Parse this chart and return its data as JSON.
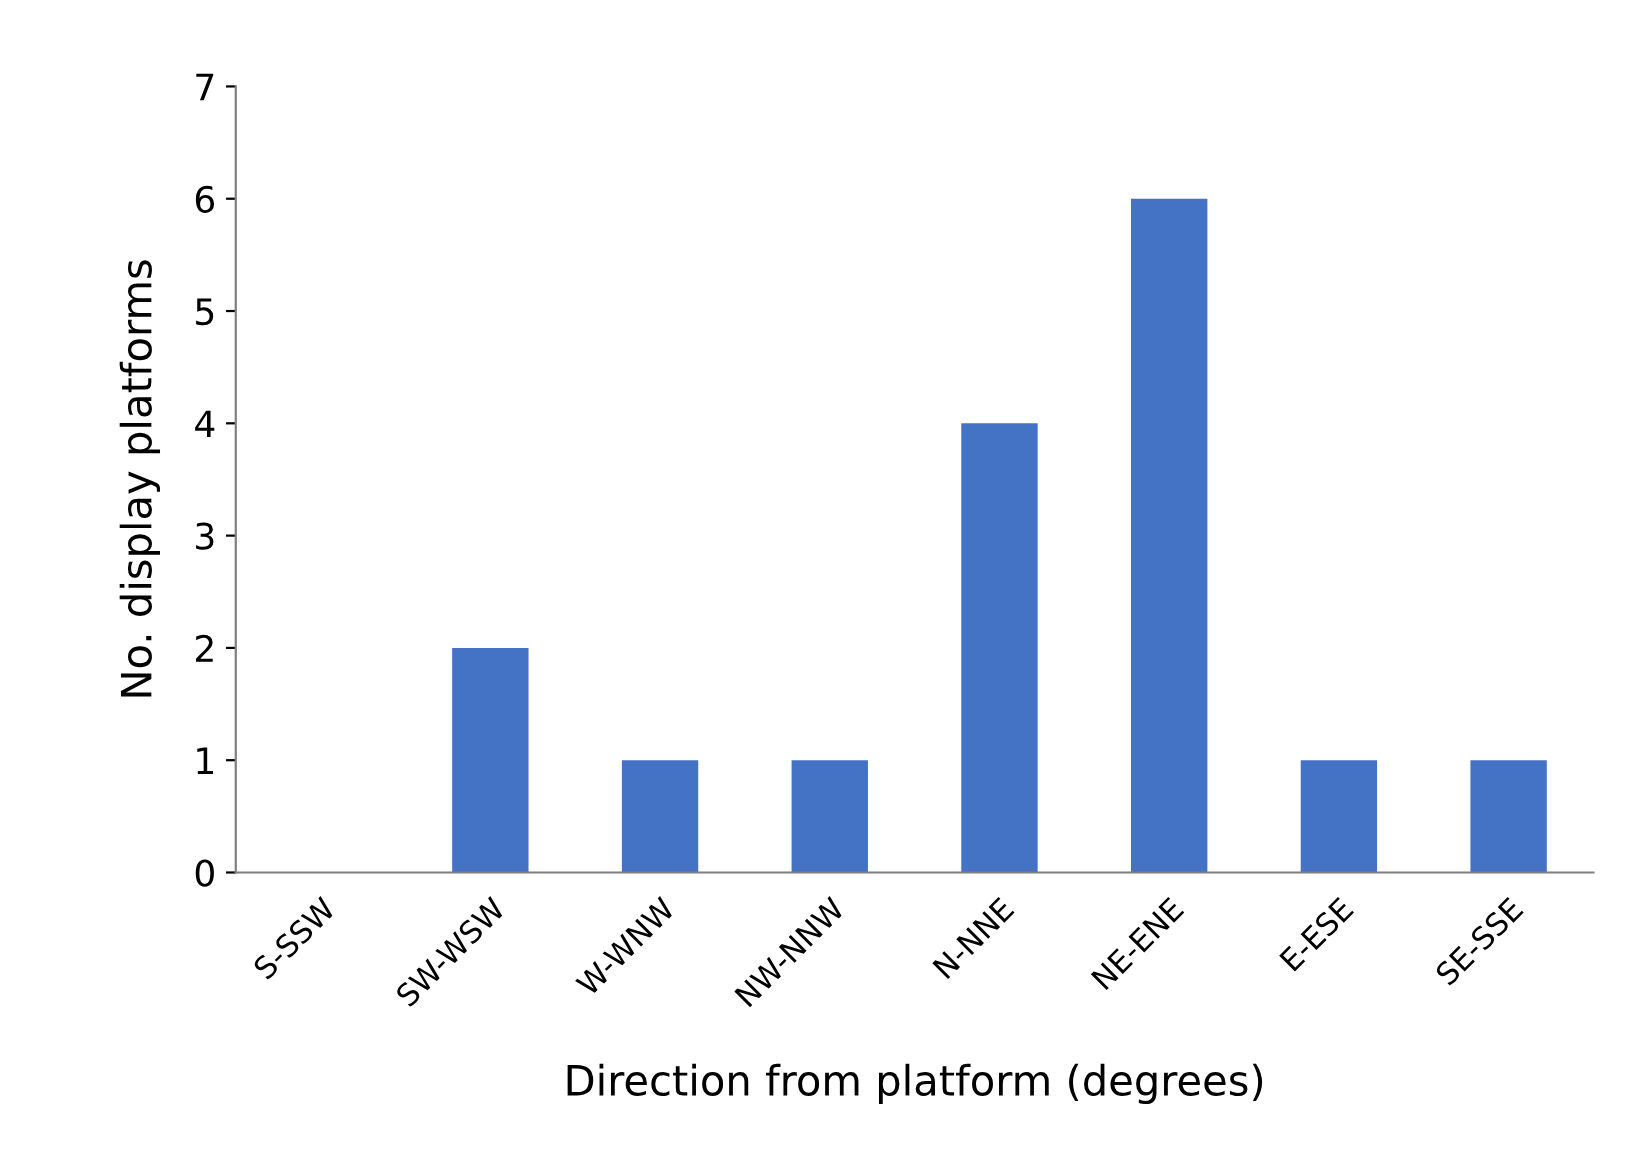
{
  "chart_data": {
    "type": "bar",
    "xlabel": "Direction from platform (degrees)",
    "ylabel": "No. display platforms",
    "categories": [
      "S-SSW",
      "SW-WSW",
      "W-WNW",
      "NW-NNW",
      "N-NNE",
      "NE-ENE",
      "E-ESE",
      "SE-SSE"
    ],
    "values": [
      0,
      2,
      1,
      1,
      4,
      6,
      1,
      1
    ],
    "color": "#4472c4",
    "ylim": [
      0,
      7
    ],
    "yticks": [
      0,
      1,
      2,
      3,
      4,
      5,
      6,
      7
    ],
    "grid": false
  }
}
